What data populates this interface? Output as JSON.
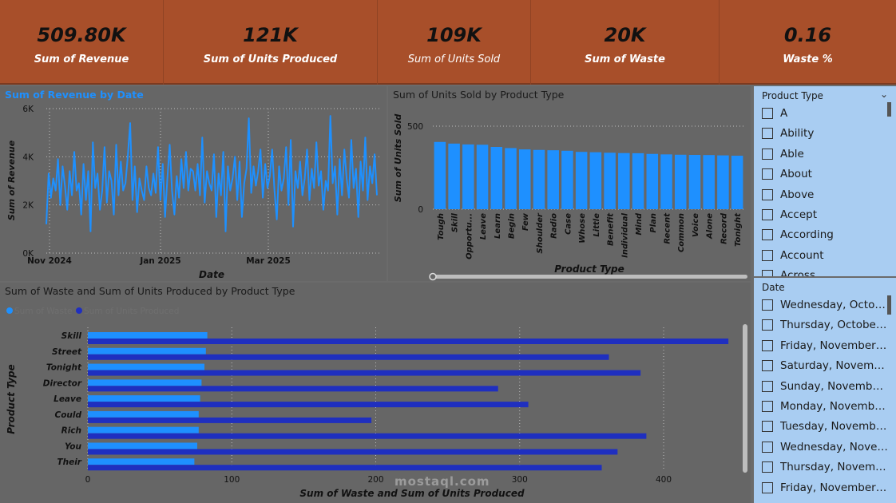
{
  "kpis": [
    {
      "value": "509.80K",
      "label": "Sum of Revenue"
    },
    {
      "value": "121K",
      "label": "Sum of Units Produced"
    },
    {
      "value": "109K",
      "label": "Sum of Units Sold"
    },
    {
      "value": "20K",
      "label": "Sum of Waste"
    },
    {
      "value": "0.16",
      "label": "Waste %"
    }
  ],
  "colors": {
    "kpi_band": "#a84f2a",
    "series_light": "#1e90ff",
    "series_dark": "#1f2fbf",
    "slicer_bg": "#a9cdf2"
  },
  "chart_data": [
    {
      "type": "line",
      "title": "Sum of Revenue by Date",
      "xlabel": "Date",
      "ylabel": "Sum of Revenue",
      "x_tick_labels": [
        "Nov 2024",
        "Jan 2025",
        "Mar 2025"
      ],
      "y_tick_labels": [
        "0K",
        "2K",
        "4K",
        "6K"
      ],
      "ylim": [
        0,
        6000
      ],
      "x_range": [
        "2024-11-01",
        "2025-04-30"
      ],
      "grid": true,
      "series": [
        {
          "values": [
            1200,
            3300,
            2300,
            3100,
            2600,
            3900,
            2000,
            3600,
            2800,
            1800,
            3400,
            2400,
            4200,
            2600,
            2900,
            1600,
            3700,
            2200,
            3400,
            900,
            4600,
            2700,
            3300,
            1800,
            2600,
            4400,
            2100,
            3400,
            3000,
            1600,
            4500,
            2400,
            3800,
            2600,
            2900,
            4000,
            5400,
            2200,
            3600,
            1700,
            3100,
            2600,
            2200,
            3600,
            2700,
            2400,
            3300,
            2500,
            4400,
            2200,
            3700,
            1500,
            3100,
            4500,
            2600,
            1600,
            3200,
            2300,
            3900,
            2700,
            4200,
            2600,
            3500,
            3400,
            2600,
            3700,
            2400,
            4800,
            2100,
            3400,
            2900,
            2600,
            4100,
            1500,
            3300,
            2400,
            4200,
            900,
            3600,
            2600,
            3100,
            4000,
            2200,
            3800,
            1500,
            2900,
            3500,
            5600,
            2500,
            3600,
            2800,
            3400,
            4300,
            2300,
            3700,
            2700,
            3200,
            4300,
            2600,
            1400,
            3600,
            2600,
            3100,
            4400,
            2000,
            4700,
            1100,
            3400,
            2700,
            3800,
            2400,
            3100,
            4300,
            2200,
            3500,
            2700,
            4600,
            2800,
            3400,
            1800,
            3000,
            2600,
            5700,
            2900,
            3600,
            1600,
            3900,
            2400,
            4300,
            3100,
            2300,
            4700,
            2700,
            3500,
            1500,
            3800,
            2600,
            4800,
            2200,
            3600,
            2900,
            4100,
            2400
          ]
        }
      ]
    },
    {
      "type": "bar",
      "title": "Sum of Units Sold by Product Type",
      "xlabel": "Product Type",
      "ylabel": "Sum of Units Sold",
      "y_tick_labels": [
        "0",
        "500"
      ],
      "ylim": [
        0,
        600
      ],
      "categories": [
        "Tough",
        "Skill",
        "Opportu...",
        "Leave",
        "Learn",
        "Begin",
        "Few",
        "Shoulder",
        "Radio",
        "Case",
        "Whose",
        "Little",
        "Benefit",
        "Individual",
        "Mind",
        "Plan",
        "Recent",
        "Common",
        "Voice",
        "Alone",
        "Record",
        "Tonight"
      ],
      "values": [
        405,
        395,
        390,
        388,
        375,
        368,
        360,
        357,
        355,
        352,
        345,
        343,
        340,
        338,
        337,
        333,
        330,
        328,
        327,
        326,
        324,
        322
      ]
    },
    {
      "type": "bar",
      "orientation": "horizontal",
      "title": "Sum of Waste and Sum of Units Produced by Product Type",
      "xlabel": "Sum of Waste and Sum of Units Produced",
      "ylabel": "Product Type",
      "x_tick_labels": [
        "0",
        "100",
        "200",
        "300",
        "400"
      ],
      "xlim": [
        0,
        450
      ],
      "legend": "top-left",
      "categories": [
        "Skill",
        "Street",
        "Tonight",
        "Director",
        "Leave",
        "Could",
        "Rich",
        "You",
        "Their"
      ],
      "series": [
        {
          "name": "Sum of Waste",
          "values": [
            83,
            82,
            81,
            79,
            78,
            77,
            77,
            76,
            74
          ]
        },
        {
          "name": "Sum of Units Produced",
          "values": [
            445,
            362,
            384,
            285,
            306,
            197,
            388,
            368,
            357
          ]
        }
      ]
    }
  ],
  "slicers": {
    "product_type": {
      "title": "Product Type",
      "items": [
        "A",
        "Ability",
        "Able",
        "About",
        "Above",
        "Accept",
        "According",
        "Account",
        "Across"
      ]
    },
    "date": {
      "title": "Date",
      "items": [
        "Wednesday, October ...",
        "Thursday, October 31,...",
        "Friday, November 01,...",
        "Saturday, November ...",
        "Sunday, November 0...",
        "Monday, November ...",
        "Tuesday, November ...",
        "Wednesday, Novemb...",
        "Thursday, November ...",
        "Friday, November 08,..."
      ]
    }
  },
  "watermark": {
    "text": "mostaql.com"
  }
}
